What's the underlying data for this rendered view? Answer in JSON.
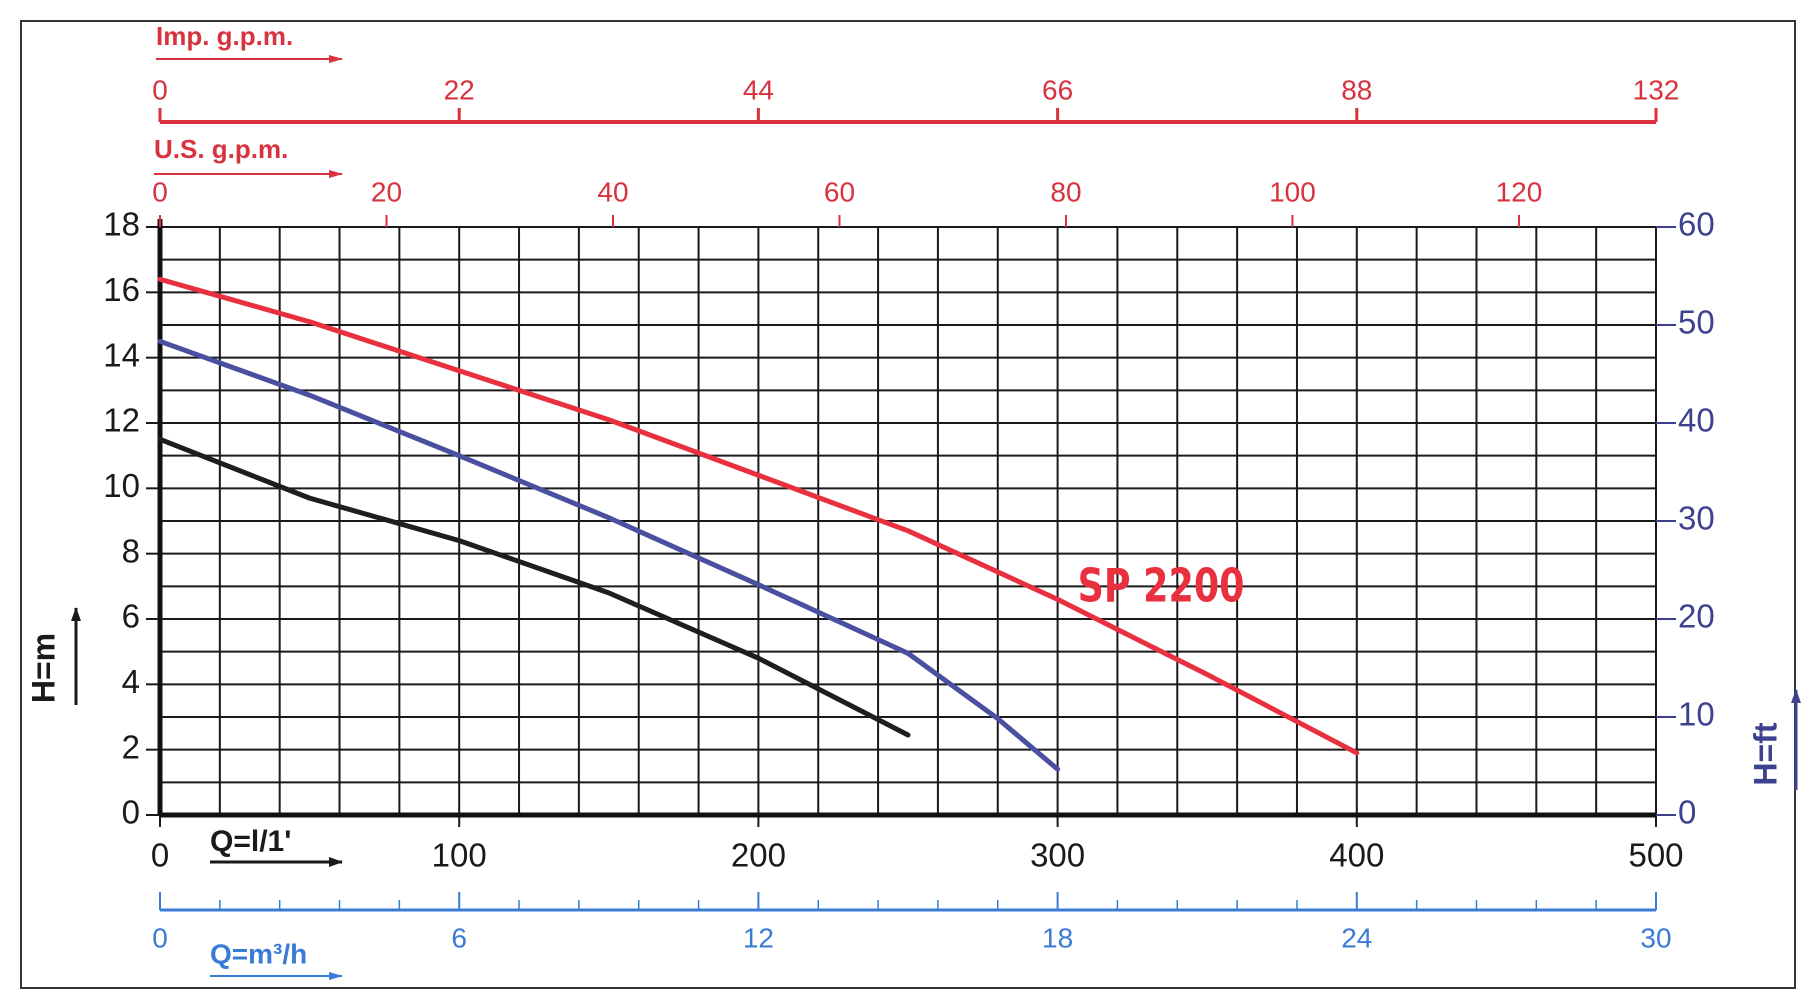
{
  "chart_data": {
    "type": "line",
    "x_label": "Q=l/1'",
    "y_label": "H=m",
    "y2_label": "H=ft",
    "xlim": [
      0,
      500
    ],
    "xticks": [
      0,
      100,
      200,
      300,
      400,
      500
    ],
    "ylim": [
      0,
      18
    ],
    "yticks": [
      0,
      2,
      4,
      6,
      8,
      10,
      12,
      14,
      16,
      18
    ],
    "y2lim": [
      0,
      60
    ],
    "y2ticks": [
      0,
      10,
      20,
      30,
      40,
      50,
      60
    ],
    "y2_color": "#3d4290",
    "grid": true,
    "series": [
      {
        "name": "SP 2200",
        "color": "#e8303f",
        "x": [
          0,
          50,
          100,
          150,
          200,
          250,
          300,
          350,
          400
        ],
        "values": [
          16.4,
          15.1,
          13.6,
          12.1,
          10.4,
          8.7,
          6.6,
          4.3,
          1.9
        ]
      },
      {
        "color": "#4b4fa0",
        "x": [
          0,
          50,
          100,
          150,
          200,
          250,
          280,
          300
        ],
        "values": [
          14.5,
          12.85,
          11.0,
          9.1,
          7.05,
          4.95,
          2.95,
          1.4
        ]
      },
      {
        "color": "#1e1e1e",
        "x": [
          0,
          50,
          100,
          150,
          200,
          250
        ],
        "values": [
          11.5,
          9.7,
          8.4,
          6.8,
          4.8,
          2.45
        ]
      }
    ],
    "top_axes": [
      {
        "label": "Imp. g.p.m.",
        "color": "#d8323f",
        "tick_labels": [
          "0",
          "22",
          "44",
          "66",
          "88",
          "132"
        ]
      },
      {
        "label": "U.S. g.p.m.",
        "color": "#d8323f",
        "lim": [
          0,
          132.1
        ],
        "ticks": [
          0,
          20,
          40,
          60,
          80,
          100,
          120
        ]
      }
    ],
    "bottom_axis": {
      "label": "Q=m³/h",
      "color": "#3a7bd5",
      "lim": [
        0,
        30
      ],
      "ticks": [
        0,
        6,
        12,
        18,
        24,
        30
      ]
    }
  }
}
